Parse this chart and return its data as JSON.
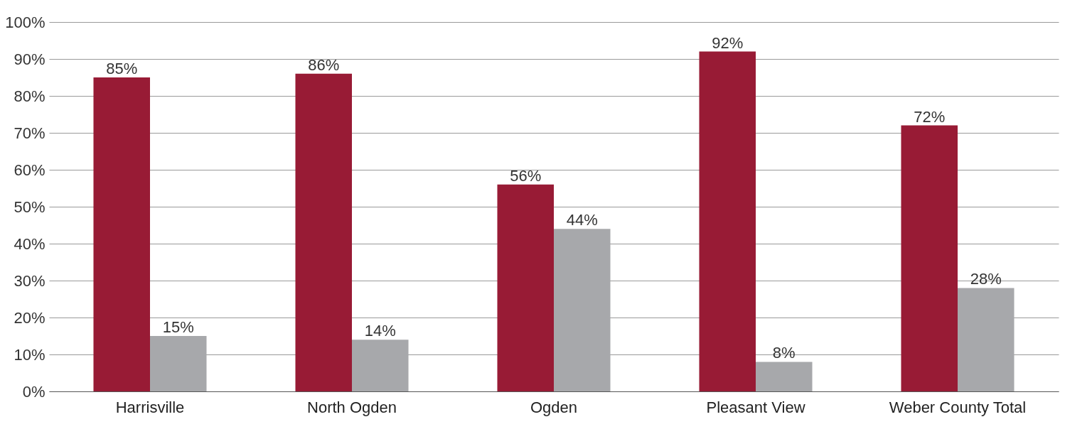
{
  "chart_data": {
    "type": "bar",
    "categories": [
      "Harrisville",
      "North Ogden",
      "Ogden",
      "Pleasant View",
      "Weber County Total"
    ],
    "series": [
      {
        "color": "#981b35",
        "values": [
          85,
          86,
          56,
          92,
          72
        ],
        "value_labels": [
          "85%",
          "86%",
          "56%",
          "92%",
          "72%"
        ]
      },
      {
        "color": "#a7a8ab",
        "values": [
          15,
          14,
          44,
          8,
          28
        ],
        "value_labels": [
          "15%",
          "14%",
          "44%",
          "8%",
          "28%"
        ]
      }
    ],
    "ylim": [
      0,
      100
    ],
    "yticks": [
      {
        "value": 0,
        "label": "0%"
      },
      {
        "value": 10,
        "label": "10%"
      },
      {
        "value": 20,
        "label": "20%"
      },
      {
        "value": 30,
        "label": "30%"
      },
      {
        "value": 40,
        "label": "40%"
      },
      {
        "value": 50,
        "label": "50%"
      },
      {
        "value": 60,
        "label": "60%"
      },
      {
        "value": 70,
        "label": "70%"
      },
      {
        "value": 80,
        "label": "80%"
      },
      {
        "value": 90,
        "label": "90%"
      },
      {
        "value": 100,
        "label": "100%"
      }
    ],
    "grid": "y",
    "legend": false
  }
}
